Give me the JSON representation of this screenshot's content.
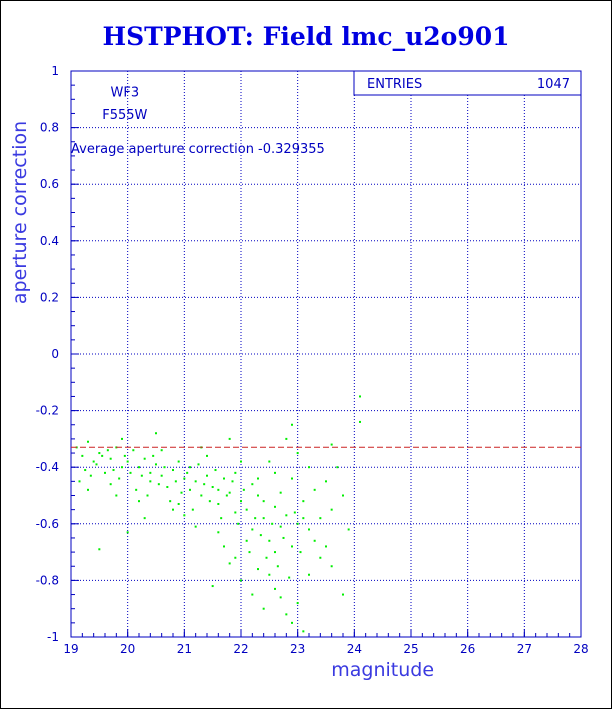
{
  "chart_data": {
    "type": "scatter",
    "title": "HSTPHOT: Field lmc_u2o901",
    "xlabel": "magnitude",
    "ylabel": "aperture correction",
    "xlim": [
      19,
      28
    ],
    "ylim": [
      -1,
      1
    ],
    "x_ticks": [
      "19",
      "20",
      "21",
      "22",
      "23",
      "24",
      "25",
      "26",
      "27",
      "28"
    ],
    "y_ticks": [
      "1",
      "0.8",
      "0.6",
      "0.4",
      "0.2",
      "0",
      "-0.2",
      "-0.4",
      "-0.6",
      "-0.8",
      "-1"
    ],
    "grid": true,
    "camera": "WF3",
    "filter": "F555W",
    "average_text": "Average aperture correction -0.329355",
    "average_value": -0.329355,
    "stats_box": {
      "label": "ENTRIES",
      "value": "1047"
    },
    "point_color": "#00ee00",
    "average_line_color": "#cc2222",
    "series": [
      {
        "points": [
          [
            19.1,
            -0.33
          ],
          [
            19.2,
            -0.36
          ],
          [
            19.3,
            -0.31
          ],
          [
            19.4,
            -0.38
          ],
          [
            19.5,
            -0.35
          ],
          [
            19.6,
            -0.42
          ],
          [
            19.7,
            -0.37
          ],
          [
            19.8,
            -0.33
          ],
          [
            19.9,
            -0.4
          ],
          [
            20.0,
            -0.38
          ],
          [
            19.15,
            -0.45
          ],
          [
            19.25,
            -0.41
          ],
          [
            19.35,
            -0.43
          ],
          [
            19.45,
            -0.39
          ],
          [
            19.55,
            -0.36
          ],
          [
            19.65,
            -0.34
          ],
          [
            19.75,
            -0.41
          ],
          [
            19.85,
            -0.44
          ],
          [
            19.95,
            -0.36
          ],
          [
            20.05,
            -0.42
          ],
          [
            20.1,
            -0.34
          ],
          [
            20.2,
            -0.4
          ],
          [
            20.3,
            -0.37
          ],
          [
            20.4,
            -0.45
          ],
          [
            20.5,
            -0.39
          ],
          [
            20.6,
            -0.43
          ],
          [
            20.7,
            -0.47
          ],
          [
            20.8,
            -0.41
          ],
          [
            20.9,
            -0.38
          ],
          [
            21.0,
            -0.44
          ],
          [
            20.15,
            -0.48
          ],
          [
            20.25,
            -0.43
          ],
          [
            20.35,
            -0.5
          ],
          [
            20.45,
            -0.36
          ],
          [
            20.55,
            -0.46
          ],
          [
            20.65,
            -0.4
          ],
          [
            20.75,
            -0.52
          ],
          [
            20.85,
            -0.45
          ],
          [
            20.95,
            -0.49
          ],
          [
            21.05,
            -0.42
          ],
          [
            21.1,
            -0.4
          ],
          [
            21.2,
            -0.45
          ],
          [
            21.3,
            -0.5
          ],
          [
            21.4,
            -0.43
          ],
          [
            21.5,
            -0.47
          ],
          [
            21.6,
            -0.53
          ],
          [
            21.7,
            -0.44
          ],
          [
            21.8,
            -0.49
          ],
          [
            21.9,
            -0.56
          ],
          [
            22.0,
            -0.52
          ],
          [
            21.15,
            -0.55
          ],
          [
            21.25,
            -0.39
          ],
          [
            21.35,
            -0.46
          ],
          [
            21.45,
            -0.52
          ],
          [
            21.55,
            -0.41
          ],
          [
            21.65,
            -0.58
          ],
          [
            21.75,
            -0.5
          ],
          [
            21.85,
            -0.45
          ],
          [
            21.95,
            -0.6
          ],
          [
            22.05,
            -0.48
          ],
          [
            22.1,
            -0.55
          ],
          [
            22.2,
            -0.62
          ],
          [
            22.3,
            -0.5
          ],
          [
            22.4,
            -0.58
          ],
          [
            22.5,
            -0.66
          ],
          [
            22.6,
            -0.54
          ],
          [
            22.7,
            -0.61
          ],
          [
            22.8,
            -0.57
          ],
          [
            22.9,
            -0.68
          ],
          [
            23.0,
            -0.6
          ],
          [
            22.15,
            -0.7
          ],
          [
            22.25,
            -0.58
          ],
          [
            22.35,
            -0.64
          ],
          [
            22.45,
            -0.72
          ],
          [
            22.55,
            -0.6
          ],
          [
            22.65,
            -0.75
          ],
          [
            22.75,
            -0.65
          ],
          [
            22.85,
            -0.79
          ],
          [
            22.95,
            -0.56
          ],
          [
            23.05,
            -0.7
          ],
          [
            23.1,
            -0.52
          ],
          [
            23.2,
            -0.62
          ],
          [
            23.3,
            -0.48
          ],
          [
            23.4,
            -0.58
          ],
          [
            23.5,
            -0.45
          ],
          [
            23.6,
            -0.55
          ],
          [
            23.8,
            -0.5
          ],
          [
            23.9,
            -0.62
          ],
          [
            23.7,
            -0.4
          ],
          [
            23.5,
            -0.68
          ],
          [
            21.9,
            -0.72
          ],
          [
            22.0,
            -0.8
          ],
          [
            22.2,
            -0.85
          ],
          [
            22.4,
            -0.9
          ],
          [
            22.6,
            -0.83
          ],
          [
            22.8,
            -0.92
          ],
          [
            22.9,
            -0.95
          ],
          [
            23.0,
            -0.88
          ],
          [
            23.1,
            -0.98
          ],
          [
            21.5,
            -0.82
          ],
          [
            22.3,
            -0.76
          ],
          [
            22.7,
            -0.86
          ],
          [
            21.7,
            -0.68
          ],
          [
            21.8,
            -0.74
          ],
          [
            23.2,
            -0.78
          ],
          [
            23.4,
            -0.72
          ],
          [
            22.1,
            -0.66
          ],
          [
            22.5,
            -0.78
          ],
          [
            21.6,
            -0.63
          ],
          [
            23.3,
            -0.66
          ],
          [
            22.8,
            -0.3
          ],
          [
            23.0,
            -0.35
          ],
          [
            22.5,
            -0.38
          ],
          [
            21.8,
            -0.3
          ],
          [
            20.5,
            -0.28
          ],
          [
            23.6,
            -0.32
          ],
          [
            24.1,
            -0.15
          ],
          [
            24.1,
            -0.24
          ],
          [
            19.5,
            -0.69
          ],
          [
            20.0,
            -0.63
          ],
          [
            20.3,
            -0.58
          ],
          [
            20.8,
            -0.55
          ],
          [
            21.2,
            -0.61
          ],
          [
            19.9,
            -0.3
          ],
          [
            21.4,
            -0.36
          ],
          [
            22.0,
            -0.38
          ],
          [
            22.6,
            -0.42
          ],
          [
            23.2,
            -0.4
          ],
          [
            22.9,
            -0.44
          ],
          [
            21.3,
            -0.33
          ],
          [
            19.7,
            -0.46
          ],
          [
            20.2,
            -0.52
          ],
          [
            20.6,
            -0.34
          ],
          [
            20.9,
            -0.53
          ],
          [
            21.1,
            -0.48
          ],
          [
            21.6,
            -0.48
          ],
          [
            22.2,
            -0.46
          ],
          [
            22.4,
            -0.52
          ],
          [
            22.7,
            -0.49
          ],
          [
            23.1,
            -0.58
          ],
          [
            23.6,
            -0.75
          ],
          [
            23.8,
            -0.85
          ],
          [
            22.9,
            -0.25
          ],
          [
            19.3,
            -0.48
          ],
          [
            19.8,
            -0.5
          ],
          [
            20.4,
            -0.42
          ],
          [
            21.0,
            -0.57
          ],
          [
            21.9,
            -0.42
          ],
          [
            22.3,
            -0.44
          ],
          [
            22.6,
            -0.7
          ]
        ]
      }
    ]
  }
}
